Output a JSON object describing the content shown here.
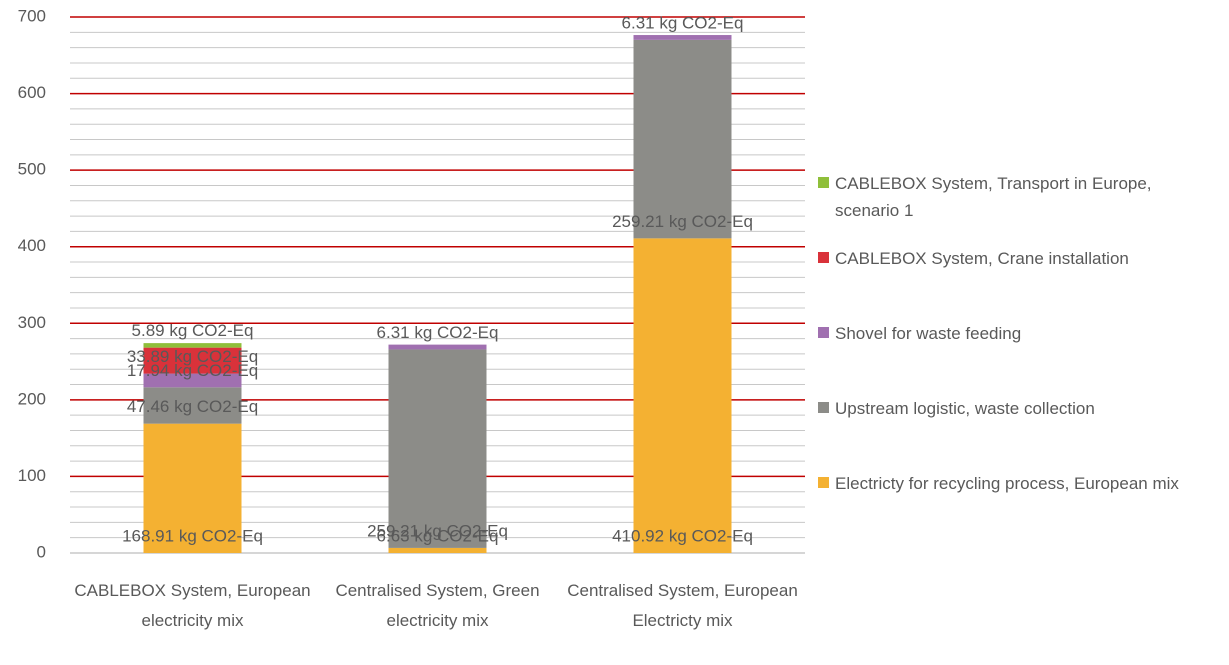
{
  "chart_data": {
    "type": "bar",
    "stacked": true,
    "categories": [
      "CABLEBOX System, European electricity mix",
      "Centralised System, Green electricity mix",
      "Centralised System, European Electricty mix"
    ],
    "series": [
      {
        "name": "Electricty for recycling process, European mix",
        "color": "#f4b132",
        "values": [
          168.91,
          6.63,
          410.92
        ],
        "value_labels": [
          "168.91 kg CO2-Eq",
          "6.63 kg CO2-Eq",
          "410.92 kg CO2-Eq"
        ]
      },
      {
        "name": "Upstream logistic, waste collection",
        "color": "#8c8c88",
        "values": [
          47.46,
          259.21,
          259.21
        ],
        "value_labels": [
          "47.46 kg CO2-Eq",
          "259.21 kg CO2-Eq",
          "259.21 kg CO2-Eq"
        ]
      },
      {
        "name": "Shovel for waste feeding",
        "color": "#a070b0",
        "values": [
          17.94,
          6.31,
          6.31
        ],
        "value_labels": [
          "17.94 kg CO2-Eq",
          "6.31 kg CO2-Eq",
          "6.31 kg CO2-Eq"
        ]
      },
      {
        "name": "CABLEBOX System, Crane installation",
        "color": "#d9323a",
        "values": [
          33.89,
          null,
          null
        ],
        "value_labels": [
          "33.89 kg CO2-Eq",
          null,
          null
        ]
      },
      {
        "name": "CABLEBOX System, Transport in Europe, scenario 1",
        "color": "#8fbf3a",
        "values": [
          5.89,
          null,
          null
        ],
        "value_labels": [
          "5.89 kg CO2-Eq",
          null,
          null
        ]
      }
    ],
    "ylim": [
      0,
      700
    ],
    "yticks": [
      0,
      100,
      200,
      300,
      400,
      500,
      600,
      700
    ],
    "grid": true,
    "grid_color": "#c00000",
    "legend": "right"
  }
}
